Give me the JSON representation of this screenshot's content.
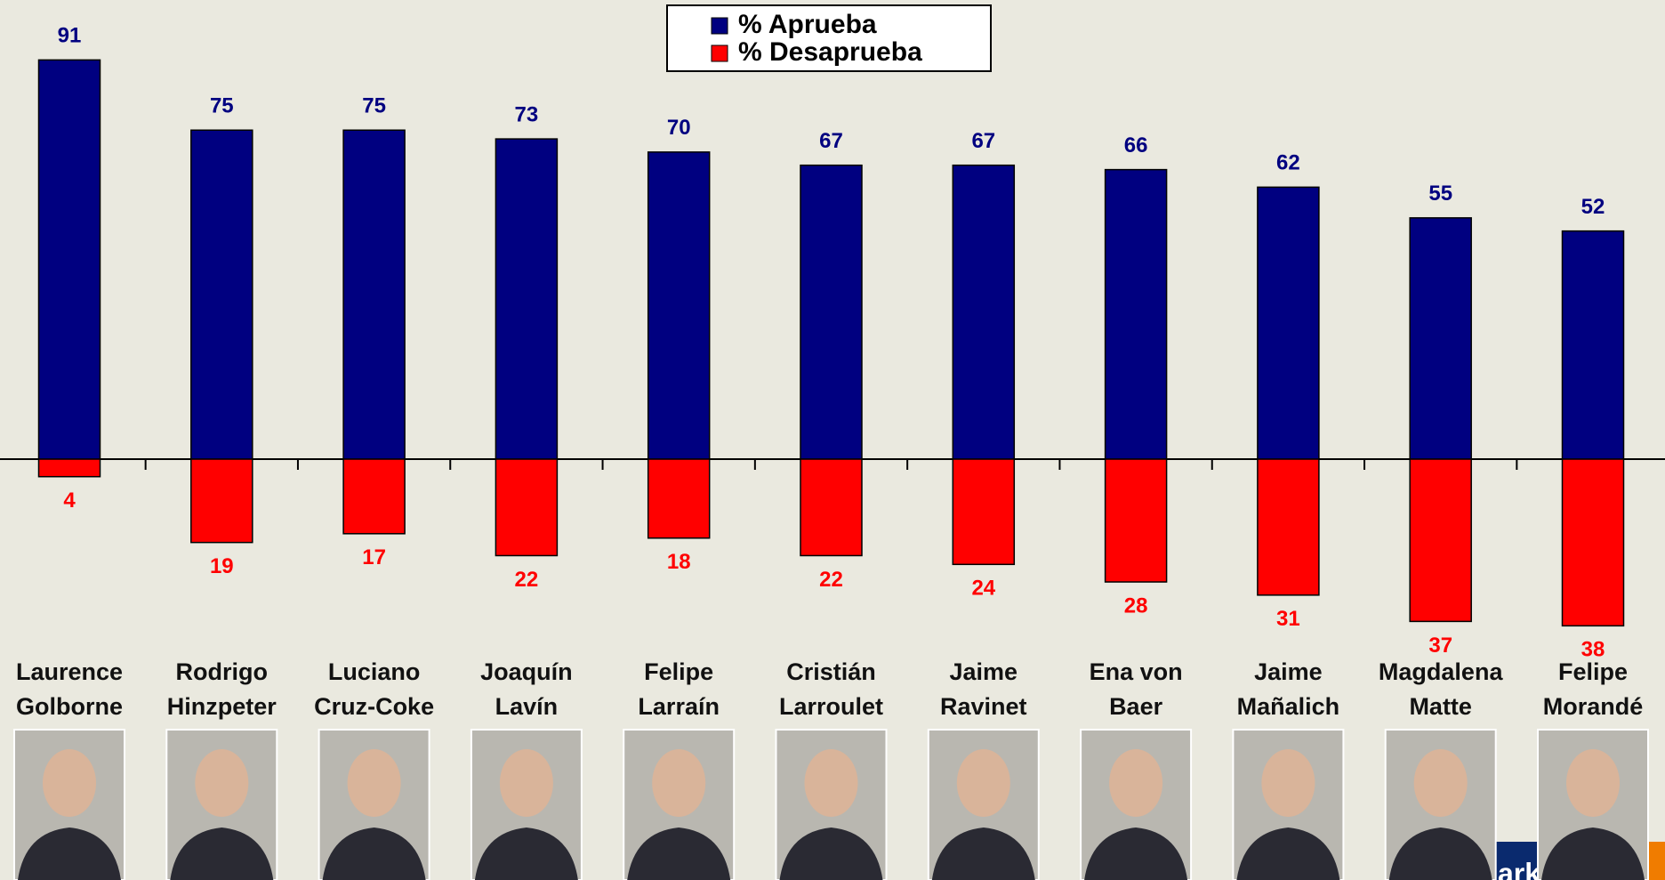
{
  "chart_data": {
    "type": "diverging_bar",
    "categories": [
      [
        "Laurence",
        "Golborne"
      ],
      [
        "Rodrigo",
        "Hinzpeter"
      ],
      [
        "Luciano",
        "Cruz-Coke"
      ],
      [
        "Joaquín",
        "Lavín"
      ],
      [
        "Felipe",
        "Larraín"
      ],
      [
        "Cristián",
        "Larroulet"
      ],
      [
        "Jaime",
        "Ravinet"
      ],
      [
        "Ena von",
        "Baer"
      ],
      [
        "Jaime",
        "Mañalich"
      ],
      [
        "Magdalena",
        "Matte"
      ],
      [
        "Felipe",
        "Morandé"
      ]
    ],
    "series": [
      {
        "name": "% Aprueba",
        "color": "#000080",
        "direction": "up",
        "values": [
          91,
          75,
          75,
          73,
          70,
          67,
          67,
          66,
          62,
          55,
          52
        ]
      },
      {
        "name": "% Desaprueba",
        "color": "#ff0000",
        "direction": "down",
        "values": [
          4,
          19,
          17,
          22,
          18,
          22,
          24,
          28,
          31,
          37,
          38
        ]
      }
    ],
    "logo": "Adimark GfK"
  }
}
